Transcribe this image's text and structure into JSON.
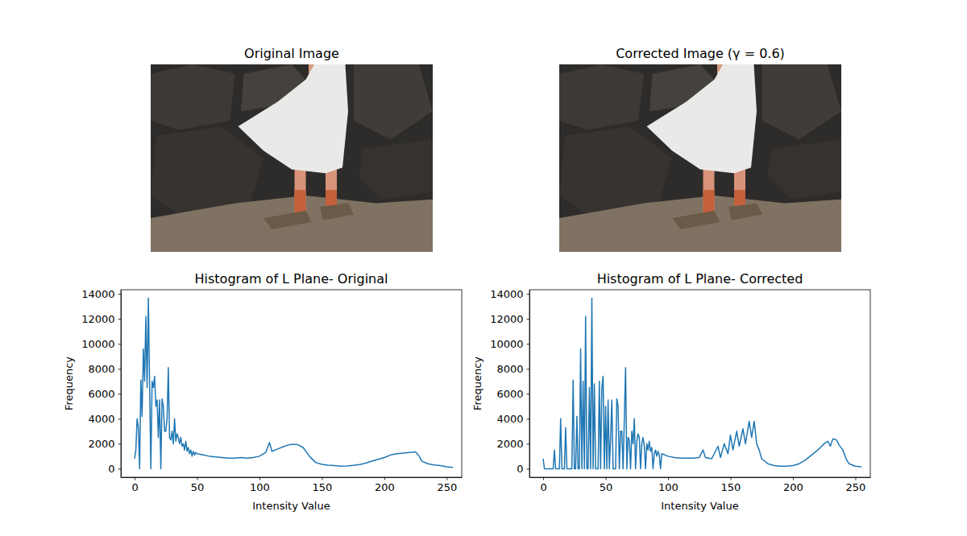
{
  "chart_data": [
    {
      "type": "image",
      "title": "Original Image"
    },
    {
      "type": "image",
      "title": "Corrected Image (γ = 0.6)"
    },
    {
      "type": "line",
      "title": "Histogram of L Plane- Original",
      "x_label": "Intensity Value",
      "y_label": "Frequency",
      "color": "#1f77b4",
      "xlim": [
        -11,
        262
      ],
      "ylim": [
        -683,
        14333
      ],
      "xticks": [
        0,
        50,
        100,
        150,
        200,
        250
      ],
      "yticks": [
        0,
        2000,
        4000,
        6000,
        8000,
        10000,
        12000,
        14000
      ],
      "x": [
        0,
        1,
        2,
        3,
        4,
        5,
        6,
        7,
        8,
        9,
        10,
        11,
        12,
        13,
        14,
        15,
        16,
        17,
        18,
        19,
        20,
        21,
        22,
        23,
        24,
        25,
        26,
        27,
        28,
        29,
        30,
        31,
        32,
        33,
        34,
        35,
        36,
        37,
        38,
        39,
        40,
        41,
        42,
        43,
        44,
        45,
        46,
        47,
        48,
        49,
        50,
        55,
        60,
        65,
        70,
        75,
        80,
        85,
        90,
        95,
        100,
        105,
        108,
        110,
        115,
        120,
        125,
        130,
        135,
        140,
        145,
        150,
        155,
        160,
        165,
        170,
        175,
        180,
        185,
        190,
        195,
        200,
        205,
        210,
        215,
        220,
        225,
        228,
        230,
        235,
        240,
        245,
        250,
        255
      ],
      "values": [
        800,
        1500,
        4000,
        3300,
        0,
        7100,
        4200,
        9600,
        7000,
        12200,
        6500,
        13650,
        6800,
        0,
        7000,
        6500,
        7400,
        5000,
        5500,
        2500,
        5500,
        0,
        5600,
        5000,
        3000,
        3000,
        4000,
        8100,
        2500,
        2300,
        3000,
        2000,
        4000,
        2200,
        2800,
        2500,
        2000,
        2500,
        1800,
        2000,
        1500,
        2200,
        1400,
        1700,
        1200,
        1500,
        1000,
        1400,
        1100,
        1300,
        1200,
        1100,
        1000,
        950,
        900,
        850,
        850,
        900,
        850,
        900,
        1000,
        1300,
        2100,
        1400,
        1600,
        1800,
        1950,
        1950,
        1700,
        1000,
        500,
        350,
        280,
        250,
        200,
        220,
        270,
        330,
        450,
        600,
        750,
        900,
        1100,
        1200,
        1250,
        1300,
        1350,
        1000,
        600,
        400,
        300,
        250,
        150,
        100
      ]
    },
    {
      "type": "line",
      "title": "Histogram of L Plane- Corrected",
      "x_label": "Intensity Value",
      "y_label": "Frequency",
      "color": "#1f77b4",
      "xlim": [
        -11,
        262
      ],
      "ylim": [
        -683,
        14333
      ],
      "xticks": [
        0,
        50,
        100,
        150,
        200,
        250
      ],
      "yticks": [
        0,
        2000,
        4000,
        6000,
        8000,
        10000,
        12000,
        14000
      ],
      "x": [
        0,
        1,
        2,
        3,
        4,
        5,
        6,
        7,
        8,
        9,
        10,
        11,
        12,
        13,
        14,
        15,
        16,
        17,
        18,
        19,
        20,
        21,
        22,
        23,
        24,
        25,
        26,
        27,
        28,
        29,
        30,
        31,
        32,
        33,
        34,
        35,
        36,
        37,
        38,
        39,
        40,
        41,
        42,
        43,
        44,
        45,
        46,
        47,
        48,
        49,
        50,
        51,
        52,
        53,
        54,
        55,
        56,
        57,
        58,
        59,
        60,
        61,
        62,
        63,
        64,
        65,
        66,
        67,
        68,
        69,
        70,
        71,
        72,
        73,
        74,
        75,
        76,
        77,
        78,
        79,
        80,
        81,
        82,
        83,
        84,
        85,
        86,
        87,
        88,
        89,
        90,
        91,
        92,
        93,
        94,
        95,
        100,
        105,
        110,
        115,
        120,
        125,
        128,
        130,
        135,
        140,
        142,
        145,
        148,
        150,
        152,
        155,
        157,
        160,
        162,
        165,
        167,
        169,
        171,
        173,
        175,
        180,
        185,
        190,
        195,
        200,
        205,
        210,
        215,
        220,
        225,
        228,
        230,
        232,
        235,
        237,
        240,
        243,
        245,
        250,
        255
      ],
      "values": [
        800,
        0,
        0,
        0,
        0,
        0,
        0,
        0,
        0,
        1500,
        0,
        0,
        0,
        0,
        4000,
        0,
        0,
        0,
        3300,
        0,
        0,
        0,
        0,
        0,
        7100,
        0,
        0,
        4200,
        0,
        0,
        9600,
        0,
        7000,
        0,
        12200,
        0,
        0,
        6500,
        0,
        13650,
        0,
        6800,
        0,
        0,
        0,
        7000,
        0,
        6500,
        7400,
        0,
        5000,
        0,
        5500,
        0,
        2500,
        5500,
        0,
        0,
        0,
        5600,
        5000,
        0,
        3000,
        3000,
        0,
        4000,
        8100,
        0,
        2500,
        2300,
        0,
        3000,
        2000,
        4000,
        0,
        2200,
        2800,
        2500,
        0,
        2000,
        2500,
        1800,
        0,
        2000,
        1500,
        2200,
        1400,
        1700,
        0,
        1200,
        1500,
        1000,
        1400,
        1100,
        0,
        1200,
        1000,
        900,
        850,
        850,
        850,
        900,
        1500,
        900,
        800,
        1800,
        900,
        2000,
        1200,
        2700,
        1500,
        3000,
        1800,
        3200,
        2000,
        3800,
        2500,
        3800,
        2000,
        1500,
        800,
        400,
        250,
        200,
        200,
        250,
        400,
        700,
        1100,
        1500,
        2000,
        2200,
        1800,
        2400,
        2300,
        1900,
        1500,
        700,
        400,
        200,
        150
      ]
    }
  ]
}
